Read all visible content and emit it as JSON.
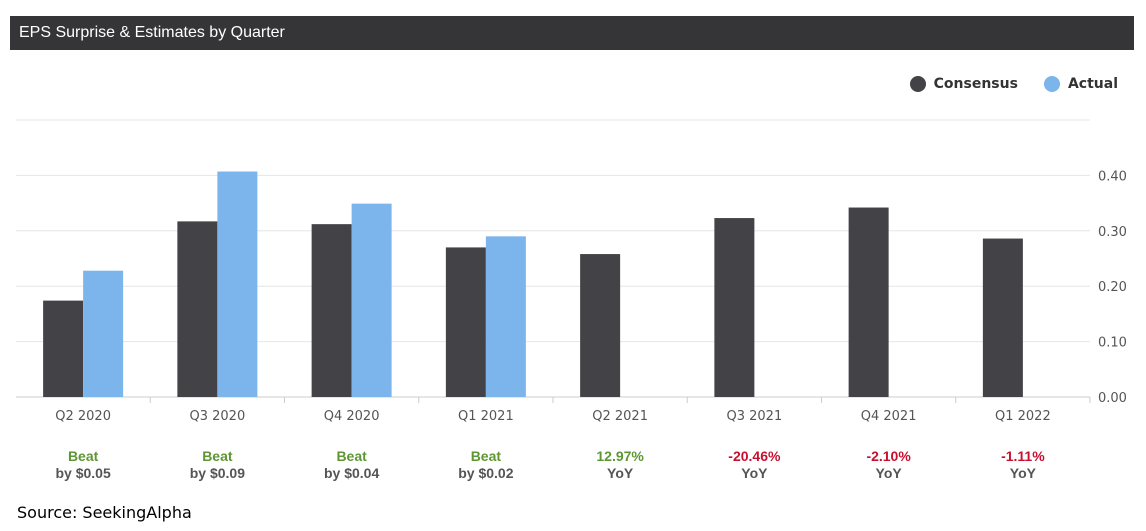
{
  "header": {
    "title": "EPS Surprise & Estimates by Quarter"
  },
  "source": "Source: SeekingAlpha",
  "colors": {
    "consensus": "#424247",
    "actual": "#7cb5ec",
    "beat": "#5e9634",
    "positive": "#5e9634",
    "negative": "#c8102e",
    "grid": "#e6e6e6",
    "axis": "#cccccc"
  },
  "legend": [
    {
      "label": "Consensus",
      "color": "#424247"
    },
    {
      "label": "Actual",
      "color": "#7cb5ec"
    }
  ],
  "chart_data": {
    "type": "bar",
    "categories": [
      "Q2 2020",
      "Q3 2020",
      "Q4 2020",
      "Q1 2021",
      "Q2 2021",
      "Q3 2021",
      "Q4 2021",
      "Q1 2022"
    ],
    "series": [
      {
        "name": "Consensus",
        "values": [
          0.174,
          0.317,
          0.312,
          0.27,
          0.258,
          0.323,
          0.342,
          0.286
        ]
      },
      {
        "name": "Actual",
        "values": [
          0.228,
          0.407,
          0.349,
          0.29,
          null,
          null,
          null,
          null
        ]
      }
    ],
    "ylim": [
      0,
      0.5
    ],
    "yticks": [
      "0.00",
      "0.10",
      "0.20",
      "0.30",
      "0.40"
    ],
    "ytick_values": [
      0,
      0.1,
      0.2,
      0.3,
      0.4
    ],
    "y_axis_side": "right",
    "grid": true,
    "legend_position": "top-right",
    "results": [
      {
        "top": "Beat",
        "bottom": "by $0.05",
        "status": "beat"
      },
      {
        "top": "Beat",
        "bottom": "by $0.09",
        "status": "beat"
      },
      {
        "top": "Beat",
        "bottom": "by $0.04",
        "status": "beat"
      },
      {
        "top": "Beat",
        "bottom": "by $0.02",
        "status": "beat"
      },
      {
        "top": "12.97%",
        "bottom": "YoY",
        "status": "positive"
      },
      {
        "top": "-20.46%",
        "bottom": "YoY",
        "status": "negative"
      },
      {
        "top": "-2.10%",
        "bottom": "YoY",
        "status": "negative"
      },
      {
        "top": "-1.11%",
        "bottom": "YoY",
        "status": "negative"
      }
    ]
  }
}
